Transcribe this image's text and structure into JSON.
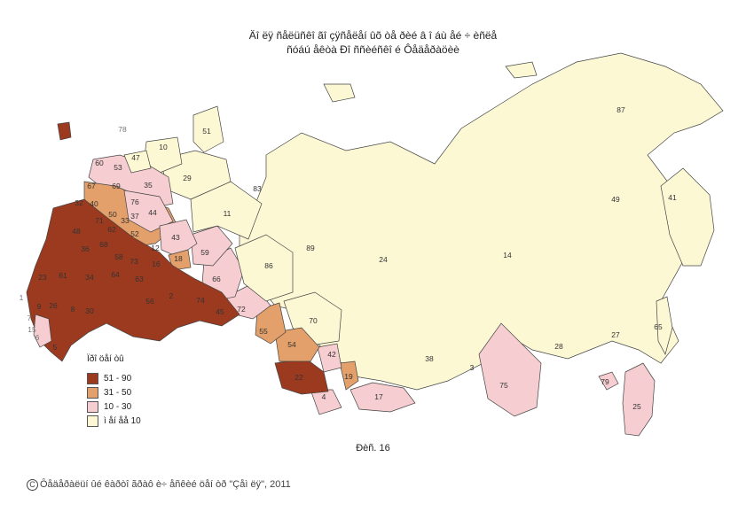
{
  "title_line1": "Äî ëÿ ñåëüñêî ãî çÿñåëåí ûõ òå ðèé â î áù åé ÷ èñëå",
  "title_line2": "ñóáú åêòà Ðî ññèéñêî é Ôåäåðàöèè",
  "legend": {
    "title": "Ïðî öåí òû",
    "items": [
      {
        "label": "51 - 90",
        "color": "#9c3a1f"
      },
      {
        "label": "31 - 50",
        "color": "#e3a06a"
      },
      {
        "label": "10 - 30",
        "color": "#f6cdd0"
      },
      {
        "label": "ì åí åå 10",
        "color": "#fdf8d4"
      }
    ]
  },
  "figure_caption": "Ðèñ. 16",
  "copyright": "Ôåäåðàëüí ûé êàðòî ãðàô è÷ åñêèé öåí òð \"Çåì ëÿ\", 2011",
  "colors": {
    "dark": "#9c3a1f",
    "orange": "#e3a06a",
    "pink": "#f6cdd0",
    "cream": "#fdf8d4",
    "border": "#444444"
  },
  "region_labels": [
    "87",
    "49",
    "41",
    "65",
    "27",
    "25",
    "79",
    "28",
    "14",
    "24",
    "75",
    "3",
    "38",
    "17",
    "4",
    "19",
    "42",
    "70",
    "89",
    "86",
    "11",
    "29",
    "83",
    "51",
    "10",
    "47",
    "78",
    "53",
    "60",
    "69",
    "35",
    "76",
    "44",
    "33",
    "37",
    "50",
    "62",
    "52",
    "43",
    "18",
    "59",
    "66",
    "72",
    "55",
    "54",
    "22",
    "16",
    "63",
    "73",
    "64",
    "58",
    "56",
    "2",
    "74",
    "45",
    "34",
    "61",
    "23",
    "26",
    "8",
    "30",
    "36",
    "68",
    "48",
    "40",
    "67",
    "32",
    "1",
    "7",
    "15",
    "6",
    "9",
    "5",
    "12",
    "71"
  ]
}
